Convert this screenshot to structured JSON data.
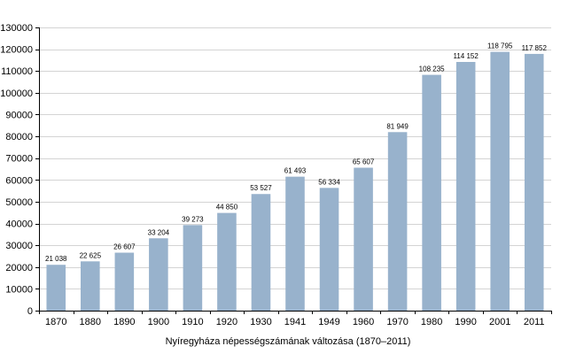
{
  "chart_data": {
    "type": "bar",
    "title": "Nyíregyháza népességszámának változása (1870–2011)",
    "categories": [
      "1870",
      "1880",
      "1890",
      "1900",
      "1910",
      "1920",
      "1930",
      "1941",
      "1949",
      "1960",
      "1970",
      "1980",
      "1990",
      "2001",
      "2011"
    ],
    "values": [
      21038,
      22625,
      26607,
      33204,
      39273,
      44850,
      53527,
      61493,
      56334,
      65607,
      81949,
      108235,
      114152,
      118795,
      117852
    ],
    "data_labels": [
      "21 038",
      "22 625",
      "26 607",
      "33 204",
      "39 273",
      "44 850",
      "53 527",
      "61 493",
      "56 334",
      "65 607",
      "81 949",
      "108 235",
      "114 152",
      "118 795",
      "117 852"
    ],
    "ylim": [
      0,
      130000
    ],
    "yticks": [
      0,
      10000,
      20000,
      30000,
      40000,
      50000,
      60000,
      70000,
      80000,
      90000,
      100000,
      110000,
      120000,
      130000
    ],
    "grid": true,
    "legend": "none",
    "bar_color": "#98b2cc",
    "grid_color": "#d4d4d4",
    "axis_color": "#000000"
  }
}
